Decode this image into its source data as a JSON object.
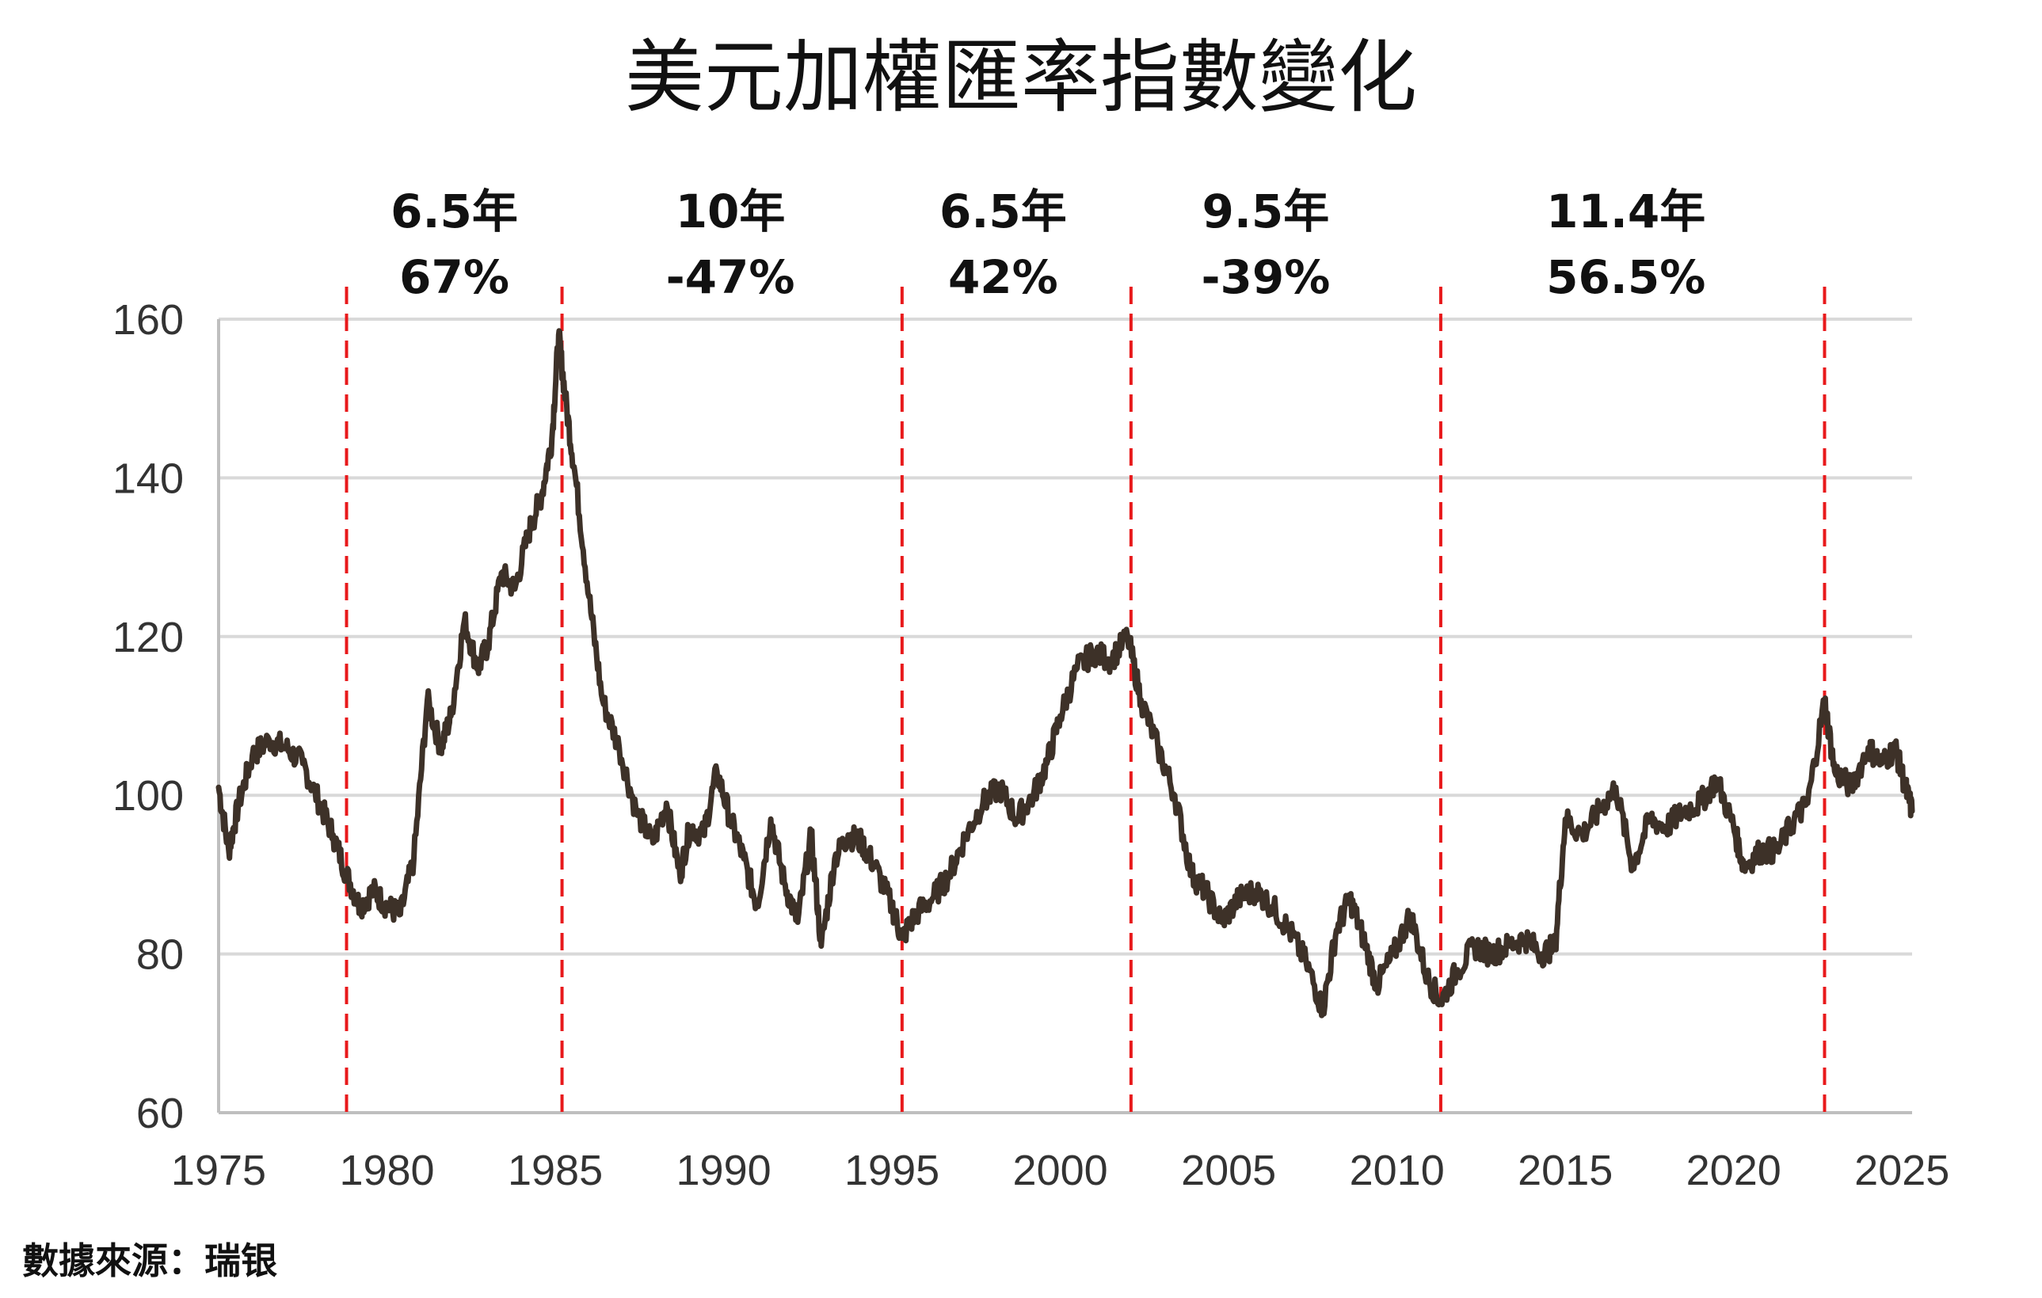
{
  "page": {
    "source_note": "數據來源：瑞银"
  },
  "colors": {
    "line": "#3d3128",
    "cycle_marker": "#e8191b",
    "grid": "#d9d9d9",
    "axis": "#bfbfbf"
  },
  "chart_data": {
    "type": "line",
    "title": "美元加權匯率指數變化",
    "xlabel": "",
    "ylabel": "",
    "xlim": [
      1975,
      2025.3
    ],
    "ylim": [
      60,
      160
    ],
    "x_ticks": [
      1975,
      1980,
      1985,
      1990,
      1995,
      2000,
      2005,
      2010,
      2015,
      2020,
      2025
    ],
    "y_ticks": [
      60,
      80,
      100,
      120,
      140,
      160
    ],
    "grid": true,
    "cycle_markers": [
      1978.8,
      1985.2,
      1995.3,
      2002.1,
      2011.3,
      2022.7
    ],
    "annotations": [
      {
        "duration": "6.5年",
        "change": "67%",
        "x": 1982.0
      },
      {
        "duration": "10年",
        "change": "-47%",
        "x": 1990.2
      },
      {
        "duration": "6.5年",
        "change": "42%",
        "x": 1998.3
      },
      {
        "duration": "9.5年",
        "change": "-39%",
        "x": 2006.1
      },
      {
        "duration": "11.4年",
        "change": "56.5%",
        "x": 2016.8
      }
    ],
    "series": [
      {
        "x": [
          1975.0,
          1975.3,
          1975.6,
          1976.0,
          1976.5,
          1977.0,
          1977.5,
          1978.0,
          1978.4,
          1978.8,
          1979.2,
          1979.6,
          1980.0,
          1980.4,
          1980.8,
          1981.2,
          1981.6,
          1981.9,
          1982.3,
          1982.7,
          1983.0,
          1983.4,
          1983.8,
          1984.2,
          1984.6,
          1984.9,
          1985.1,
          1985.3,
          1985.6,
          1986.0,
          1986.4,
          1986.9,
          1987.4,
          1987.9,
          1988.3,
          1988.7,
          1989.0,
          1989.4,
          1989.8,
          1990.2,
          1990.6,
          1991.0,
          1991.4,
          1991.8,
          1992.2,
          1992.6,
          1992.9,
          1993.3,
          1993.7,
          1994.1,
          1994.5,
          1995.0,
          1995.3,
          1995.7,
          1996.2,
          1996.7,
          1997.2,
          1997.7,
          1998.2,
          1998.7,
          1999.2,
          1999.6,
          2000.0,
          2000.5,
          2001.0,
          2001.5,
          2002.0,
          2002.4,
          2002.9,
          2003.4,
          2003.9,
          2004.3,
          2004.8,
          2005.3,
          2005.8,
          2006.3,
          2006.8,
          2007.3,
          2007.8,
          2008.2,
          2008.6,
          2009.0,
          2009.4,
          2009.9,
          2010.4,
          2010.9,
          2011.3,
          2011.8,
          2012.3,
          2012.8,
          2013.3,
          2013.8,
          2014.3,
          2014.7,
          2015.0,
          2015.5,
          2016.0,
          2016.5,
          2017.0,
          2017.5,
          2018.0,
          2018.5,
          2019.0,
          2019.5,
          2020.0,
          2020.3,
          2020.8,
          2021.3,
          2021.8,
          2022.2,
          2022.7,
          2023.0,
          2023.5,
          2024.0,
          2024.4,
          2024.8,
          2025.1,
          2025.3
        ],
        "values": [
          101,
          93,
          99,
          105,
          107,
          106,
          104,
          99,
          95,
          90,
          86,
          88,
          86,
          85,
          92,
          112,
          106,
          110,
          122,
          116,
          119,
          128,
          126,
          133,
          138,
          145,
          158,
          150,
          140,
          125,
          112,
          106,
          98,
          94,
          99,
          90,
          96,
          95,
          103,
          97,
          92,
          86,
          97,
          89,
          84,
          95,
          81,
          92,
          95,
          94,
          91,
          86,
          82,
          85,
          87,
          90,
          95,
          99,
          101,
          97,
          100,
          104,
          110,
          116,
          118,
          117,
          120,
          112,
          106,
          100,
          90,
          88,
          84,
          87,
          88,
          86,
          83,
          79,
          73,
          83,
          87,
          82,
          76,
          80,
          85,
          77,
          74,
          78,
          81,
          80,
          81,
          82,
          80,
          81,
          97,
          95,
          98,
          101,
          91,
          97,
          96,
          98,
          99,
          102,
          96,
          91,
          93,
          93,
          97,
          99,
          112,
          103,
          101,
          106,
          104,
          106,
          101,
          98
        ]
      }
    ]
  }
}
